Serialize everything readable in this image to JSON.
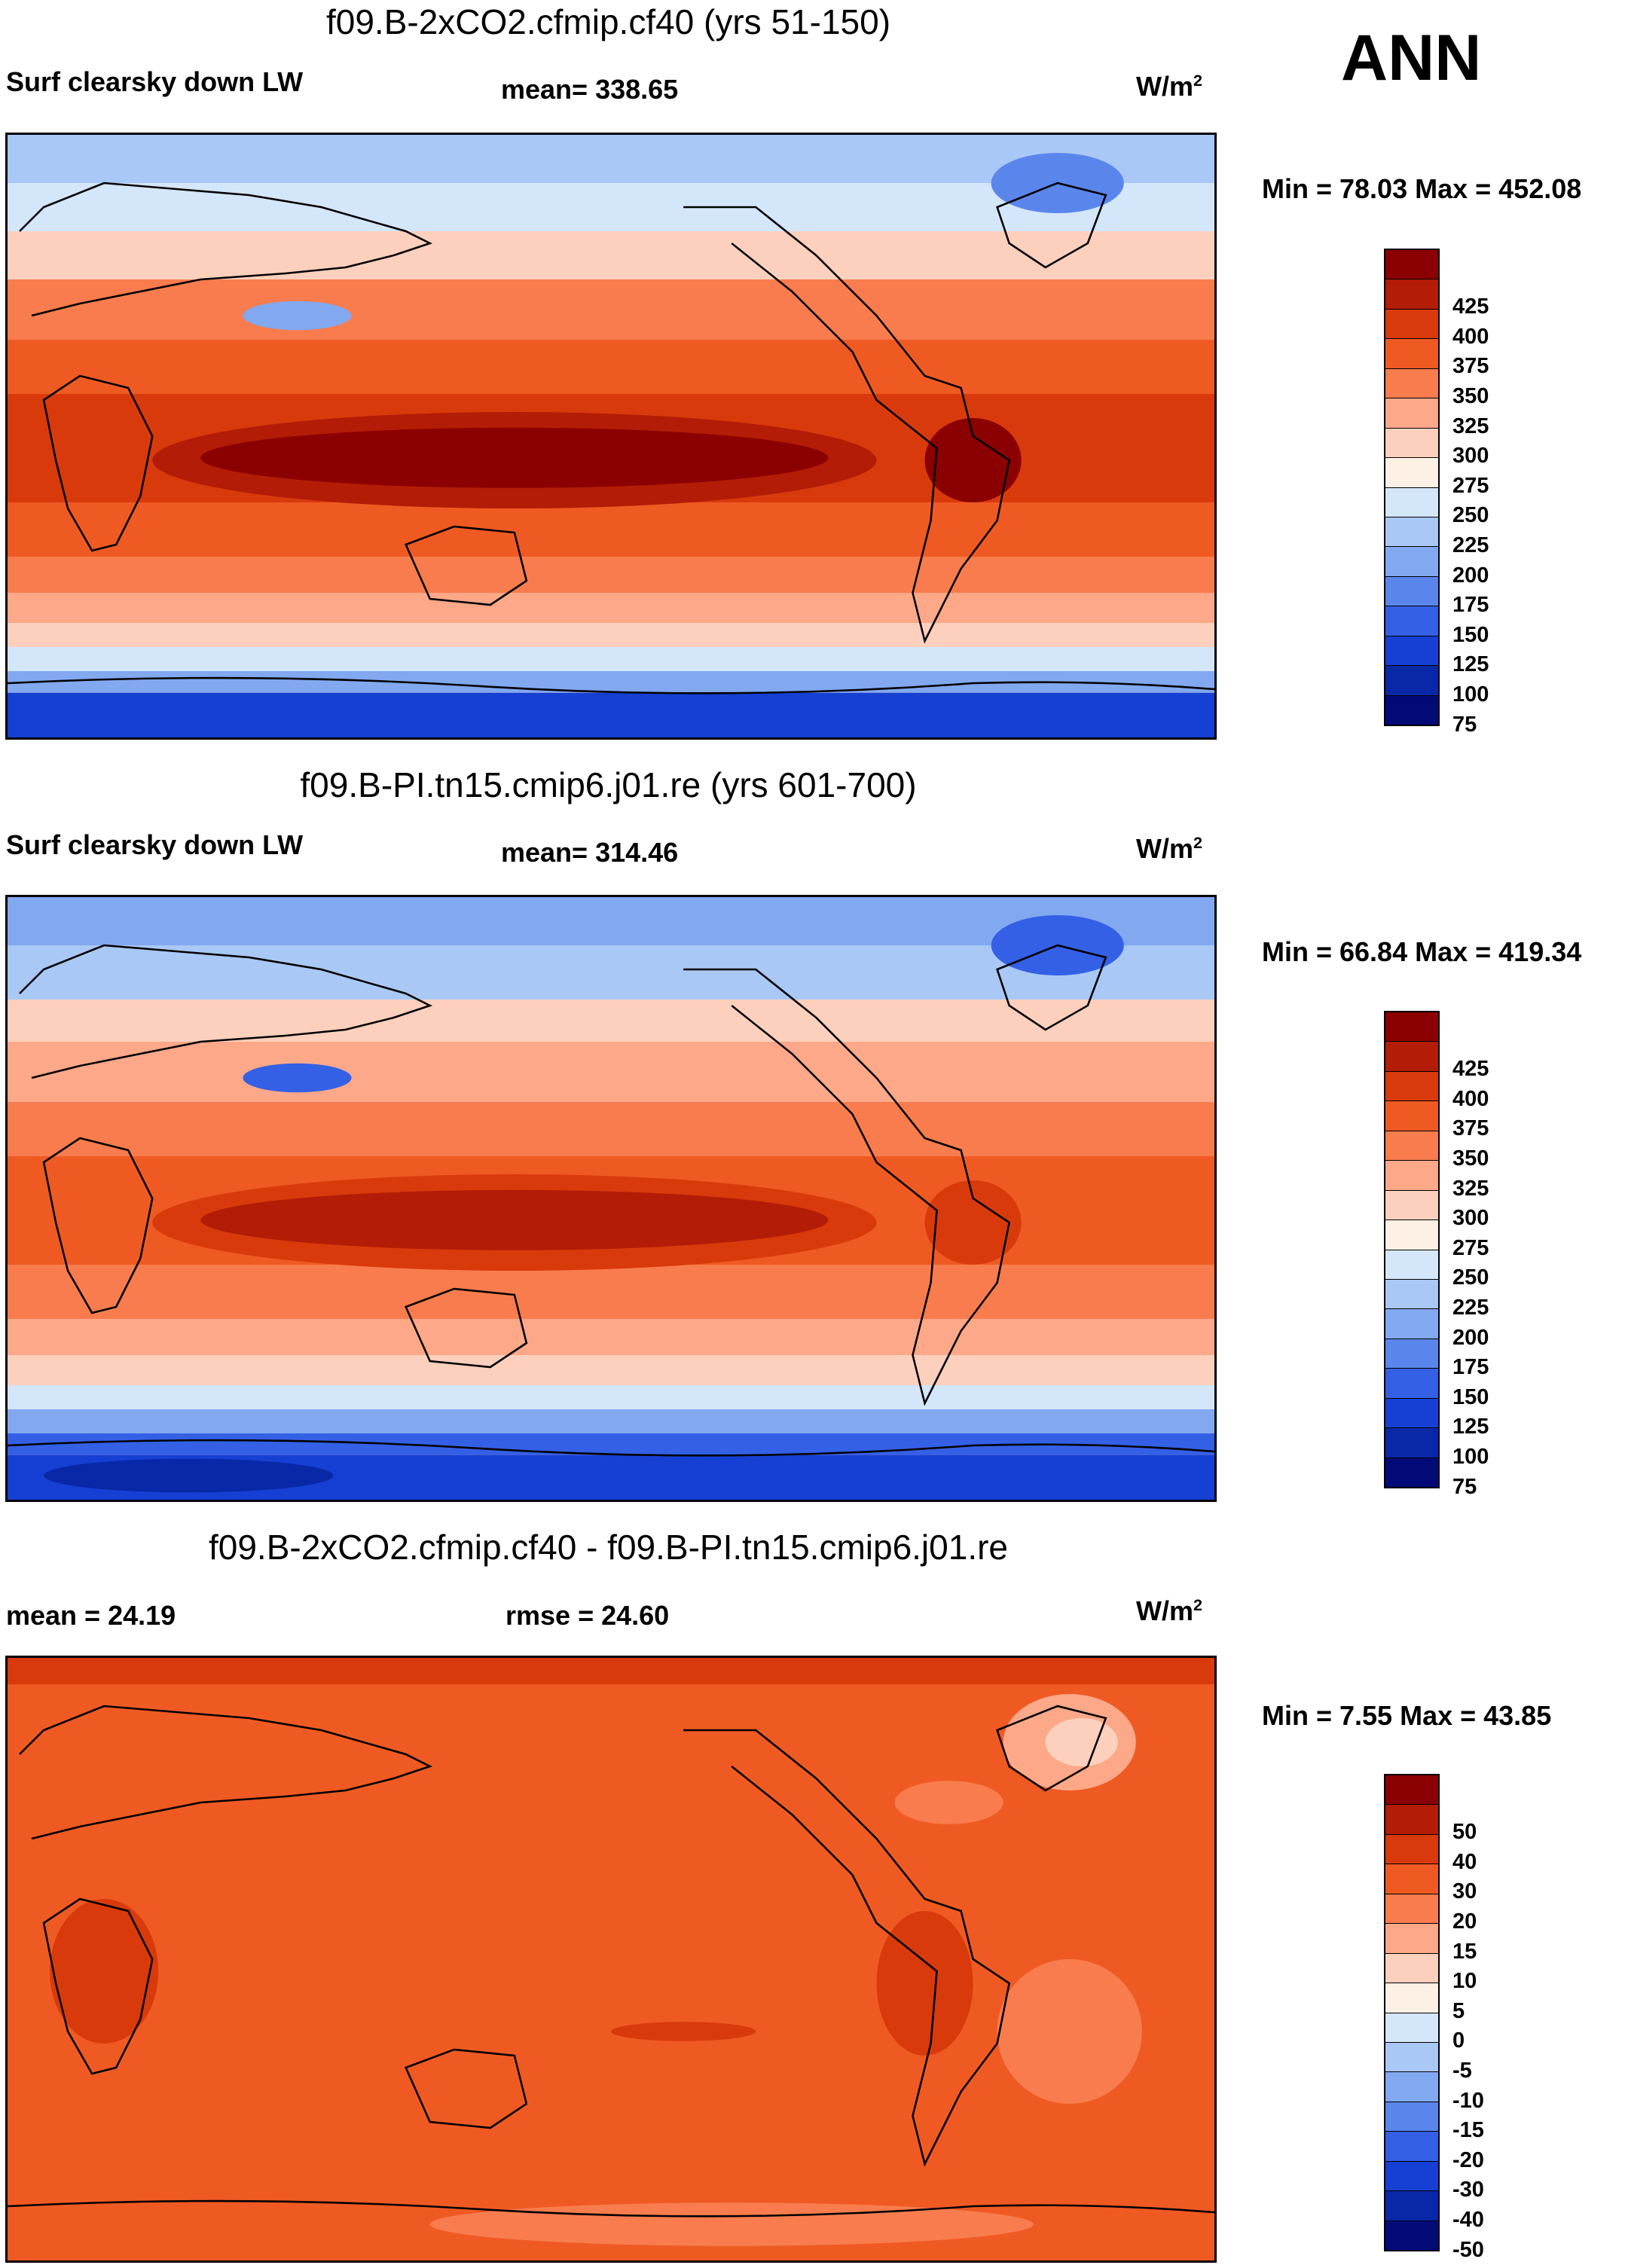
{
  "corner_label": "ANN",
  "units_base": "W/m",
  "units_exp": "2",
  "panels": [
    {
      "title": "f09.B-2xCO2.cfmip.cf40 (yrs 51-150)",
      "left_label": "Surf clearsky down LW",
      "center_label": "mean= 338.65",
      "minmax": "Min =  78.03 Max = 452.08",
      "colorbar": {
        "colors": [
          "#8b0000",
          "#b31c06",
          "#d93a0c",
          "#ef5a23",
          "#f87c4e",
          "#fca889",
          "#fdd0bd",
          "#fdf0e4",
          "#d4e6f9",
          "#a9c8f5",
          "#82a8f0",
          "#5a86ec",
          "#3460e6",
          "#1640d3",
          "#0828a8",
          "#020a78"
        ],
        "labels": [
          "425",
          "400",
          "375",
          "350",
          "325",
          "300",
          "275",
          "250",
          "225",
          "200",
          "175",
          "150",
          "125",
          "100",
          "75"
        ]
      }
    },
    {
      "title": "f09.B-PI.tn15.cmip6.j01.re (yrs 601-700)",
      "left_label": "Surf clearsky down LW",
      "center_label": "mean= 314.46",
      "minmax": "Min =  66.84 Max = 419.34",
      "colorbar": {
        "colors": [
          "#8b0000",
          "#b31c06",
          "#d93a0c",
          "#ef5a23",
          "#f87c4e",
          "#fca889",
          "#fdd0bd",
          "#fdf0e4",
          "#d4e6f9",
          "#a9c8f5",
          "#82a8f0",
          "#5a86ec",
          "#3460e6",
          "#1640d3",
          "#0828a8",
          "#020a78"
        ],
        "labels": [
          "425",
          "400",
          "375",
          "350",
          "325",
          "300",
          "275",
          "250",
          "225",
          "200",
          "175",
          "150",
          "125",
          "100",
          "75"
        ]
      }
    },
    {
      "title": "f09.B-2xCO2.cfmip.cf40 - f09.B-PI.tn15.cmip6.j01.re",
      "left_label": "mean =  24.19",
      "center_label": "rmse =  24.60",
      "minmax": "Min =   7.55 Max =  43.85",
      "colorbar": {
        "colors": [
          "#8b0000",
          "#b31c06",
          "#d93a0c",
          "#ef5a23",
          "#f87c4e",
          "#fca889",
          "#fdd0bd",
          "#fdf0e4",
          "#d4e6f9",
          "#a9c8f5",
          "#82a8f0",
          "#5a86ec",
          "#3460e6",
          "#1640d3",
          "#0828a8",
          "#020a78"
        ],
        "labels": [
          "50",
          "40",
          "30",
          "20",
          "15",
          "10",
          "5",
          "0",
          "-5",
          "-10",
          "-15",
          "-20",
          "-30",
          "-40",
          "-50"
        ]
      }
    }
  ]
}
